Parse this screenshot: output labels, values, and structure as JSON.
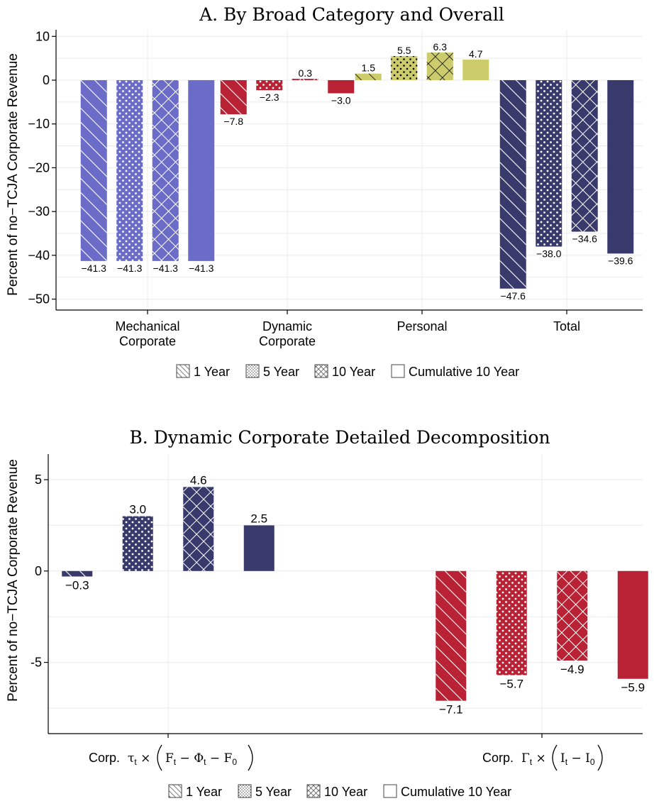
{
  "panels": [
    {
      "title": "A. By Broad Category and Overall",
      "ylabel": "Percent of no−TCJA Corporate Revenue",
      "ylim": [
        -52.5,
        11.5
      ],
      "yticks": [
        10,
        0,
        -10,
        -20,
        -30,
        -40,
        -50
      ],
      "ytick_labels": [
        "10",
        "0",
        "−10",
        "−20",
        "−30",
        "−40",
        "−50"
      ],
      "groups": [
        {
          "label_lines": [
            "Mechanical",
            "Corporate"
          ],
          "color": "#6b6bc8",
          "values": [
            -41.3,
            -41.3,
            -41.3,
            -41.3
          ],
          "labels": [
            "−41.3",
            "−41.3",
            "−41.3",
            "−41.3"
          ]
        },
        {
          "label_lines": [
            "Dynamic",
            "Corporate"
          ],
          "color": "#b82234",
          "values": [
            -7.8,
            -2.3,
            0.3,
            -3.0
          ],
          "labels": [
            "−7.8",
            "−2.3",
            "0.3",
            "−3.0"
          ]
        },
        {
          "label_lines": [
            "Personal"
          ],
          "color": "#cccc6c",
          "values": [
            1.5,
            5.5,
            6.3,
            4.7
          ],
          "labels": [
            "1.5",
            "5.5",
            "6.3",
            "4.7"
          ]
        },
        {
          "label_lines": [
            "Total"
          ],
          "color": "#393a6c",
          "values": [
            -47.6,
            -38.0,
            -34.6,
            -39.6
          ],
          "labels": [
            "−47.6",
            "−38.0",
            "−34.6",
            "−39.6"
          ]
        }
      ],
      "legend": [
        "1 Year",
        "5 Year",
        "10 Year",
        "Cumulative 10 Year"
      ]
    },
    {
      "title": "B. Dynamic Corporate Detailed Decomposition",
      "ylabel": "Percent of no−TCJA Corporate Revenue",
      "ylim": [
        -8.9,
        6.4
      ],
      "yticks": [
        5,
        0,
        -5
      ],
      "ytick_labels": [
        "5",
        "0",
        "-5"
      ],
      "groups": [
        {
          "label_prefix": "Corp.",
          "formula": "tauF",
          "color": "#393a6c",
          "values": [
            -0.3,
            3.0,
            4.6,
            2.5
          ],
          "labels": [
            "−0.3",
            "3.0",
            "4.6",
            "2.5"
          ]
        },
        {
          "label_prefix": "Corp.",
          "formula": "gammaI",
          "color": "#b82234",
          "values": [
            -7.1,
            -5.7,
            -4.9,
            -5.9
          ],
          "labels": [
            "−7.1",
            "−5.7",
            "−4.9",
            "−5.9"
          ]
        }
      ],
      "legend": [
        "1 Year",
        "5 Year",
        "10 Year",
        "Cumulative 10 Year"
      ]
    }
  ],
  "chart_data": [
    {
      "type": "bar",
      "title": "A. By Broad Category and Overall",
      "ylabel": "Percent of no−TCJA Corporate Revenue",
      "categories": [
        "Mechanical Corporate",
        "Dynamic Corporate",
        "Personal",
        "Total"
      ],
      "series": [
        {
          "name": "1 Year",
          "values": [
            -41.3,
            -7.8,
            1.5,
            -47.6
          ]
        },
        {
          "name": "5 Year",
          "values": [
            -41.3,
            -2.3,
            5.5,
            -38.0
          ]
        },
        {
          "name": "10 Year",
          "values": [
            -41.3,
            0.3,
            6.3,
            -34.6
          ]
        },
        {
          "name": "Cumulative 10 Year",
          "values": [
            -41.3,
            -3.0,
            4.7,
            -39.6
          ]
        }
      ],
      "ylim": [
        -52.5,
        11.5
      ],
      "grid": true,
      "legend": "bottom"
    },
    {
      "type": "bar",
      "title": "B. Dynamic Corporate Detailed Decomposition",
      "ylabel": "Percent of no−TCJA Corporate Revenue",
      "categories": [
        "Corp. τt × (Ft − Φt − F0)",
        "Corp. Γt × (It − I0)"
      ],
      "series": [
        {
          "name": "1 Year",
          "values": [
            -0.3,
            -7.1
          ]
        },
        {
          "name": "5 Year",
          "values": [
            3.0,
            -5.7
          ]
        },
        {
          "name": "10 Year",
          "values": [
            4.6,
            -4.9
          ]
        },
        {
          "name": "Cumulative 10 Year",
          "values": [
            2.5,
            -5.9
          ]
        }
      ],
      "ylim": [
        -8.9,
        6.4
      ],
      "grid": true,
      "legend": "bottom"
    }
  ]
}
